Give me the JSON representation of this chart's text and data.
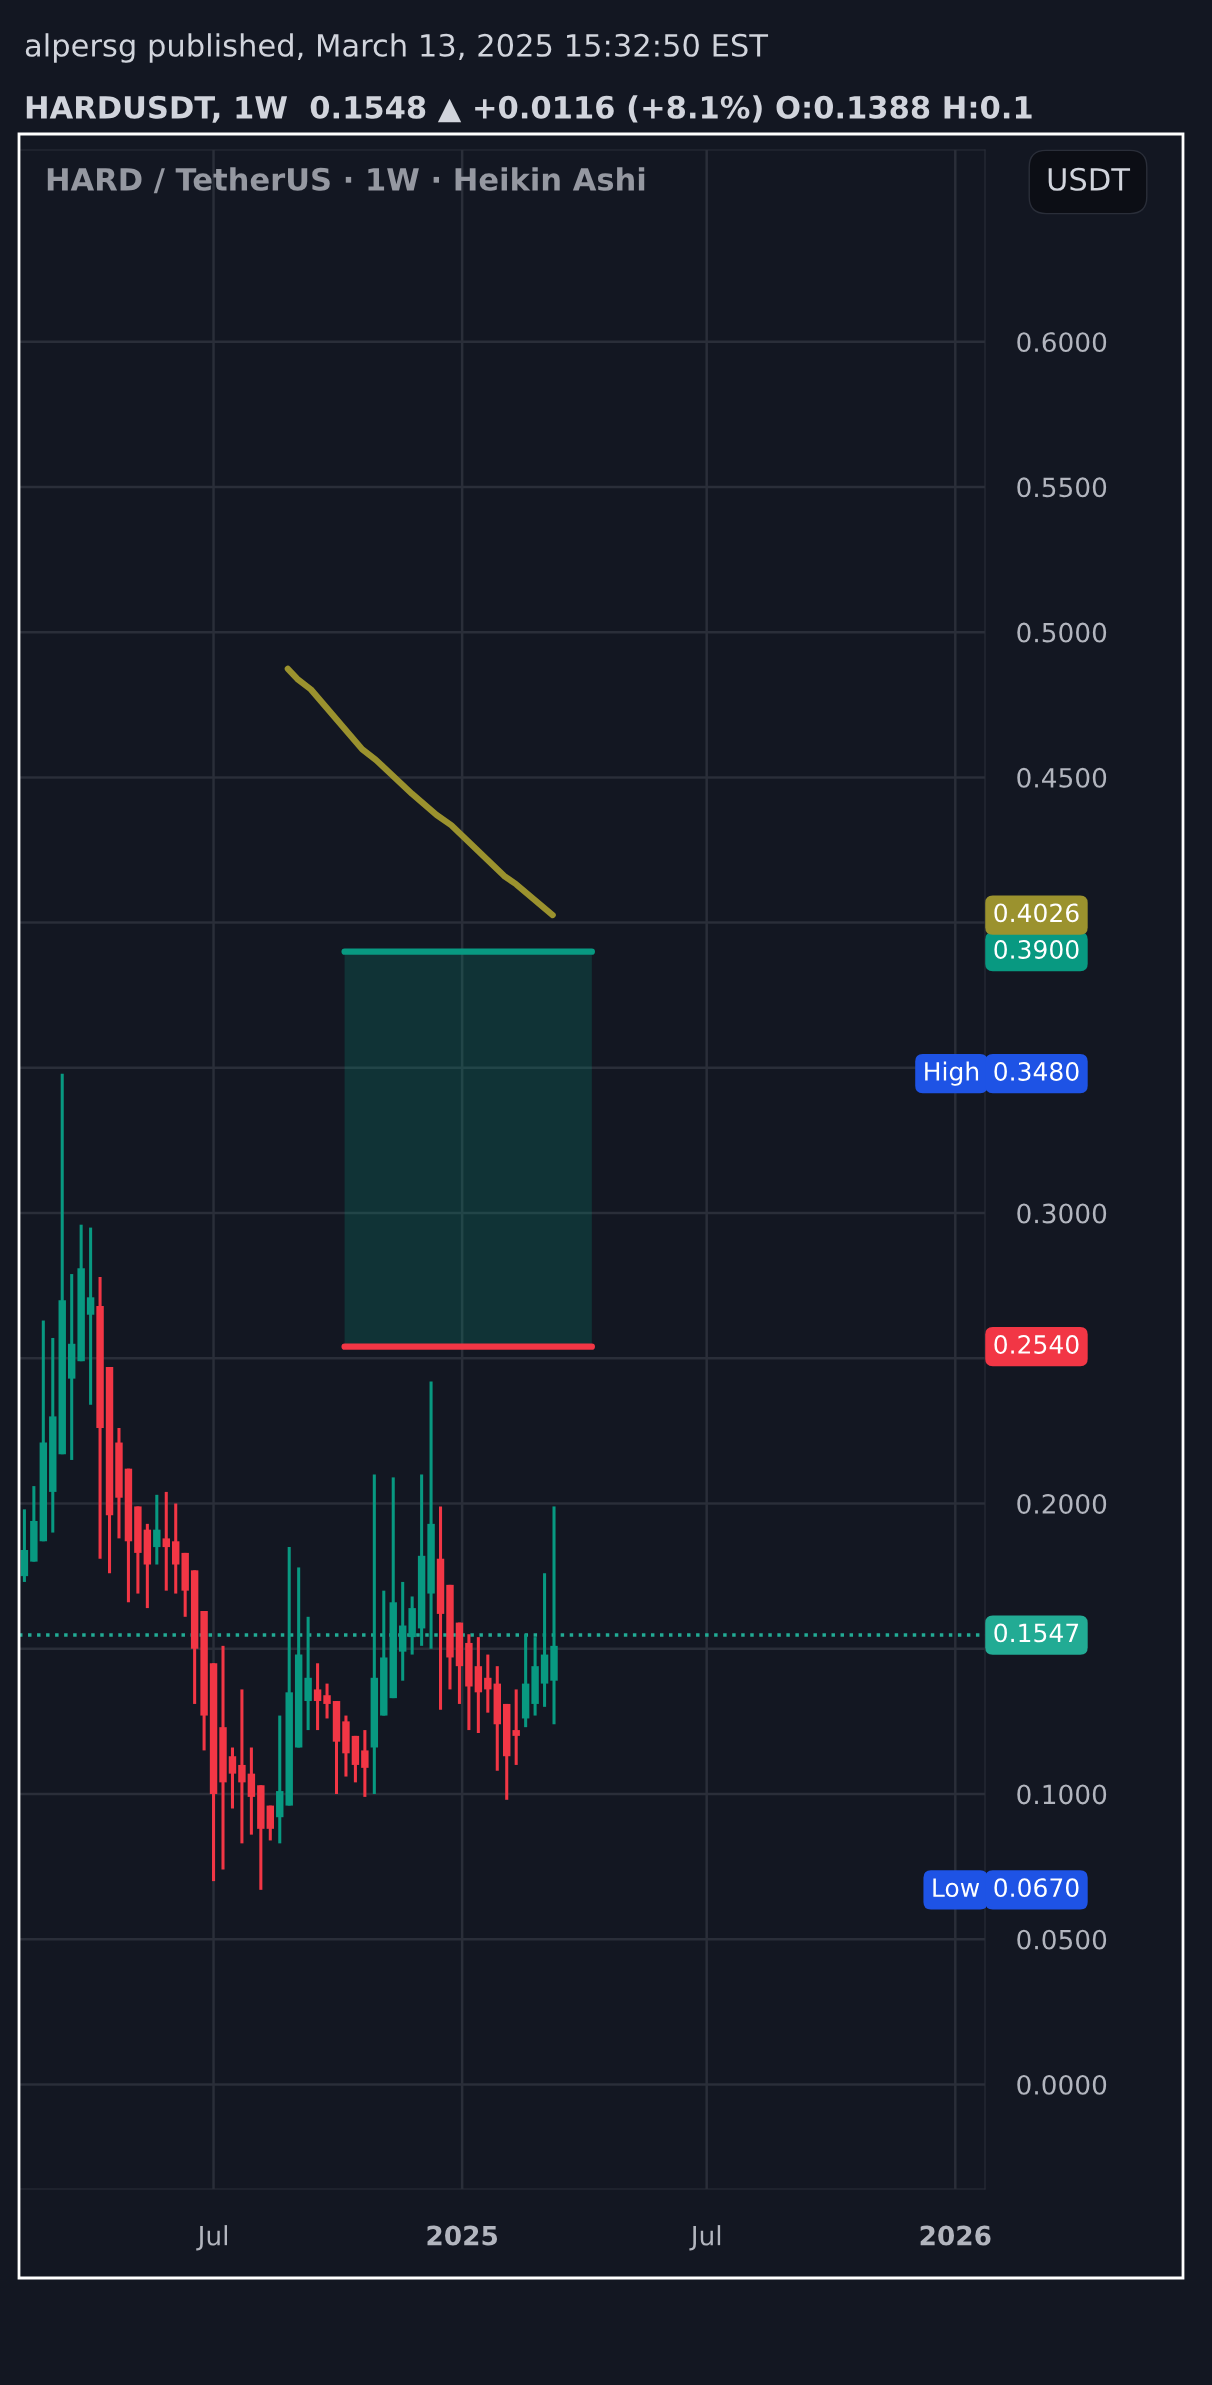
{
  "chart_data": {
    "type": "candlestick",
    "title": "HARD / TetherUS · 1W · Heikin Ashi",
    "subtitle": "HARDUSDT, 1W  0.1548 ▲ +0.0116 (+8.1%) O:0.1388 H:0.1",
    "x": [
      "2024-02-12",
      "2024-02-19",
      "2024-02-26",
      "2024-03-04",
      "2024-03-11",
      "2024-03-18",
      "2024-03-25",
      "2024-04-01",
      "2024-04-08",
      "2024-04-15",
      "2024-04-22",
      "2024-04-29",
      "2024-05-06",
      "2024-05-13",
      "2024-05-20",
      "2024-05-27",
      "2024-06-03",
      "2024-06-10",
      "2024-06-17",
      "2024-06-24",
      "2024-07-01",
      "2024-07-08",
      "2024-07-15",
      "2024-07-22",
      "2024-07-29",
      "2024-08-05",
      "2024-08-12",
      "2024-08-19",
      "2024-08-26",
      "2024-09-02",
      "2024-09-09",
      "2024-09-16",
      "2024-09-23",
      "2024-09-30",
      "2024-10-07",
      "2024-10-14",
      "2024-10-21",
      "2024-10-28",
      "2024-11-04",
      "2024-11-11",
      "2024-11-18",
      "2024-11-25",
      "2024-12-02",
      "2024-12-09",
      "2024-12-16",
      "2024-12-23",
      "2024-12-30",
      "2025-01-06",
      "2025-01-13",
      "2025-01-20",
      "2025-01-27",
      "2025-02-03",
      "2025-02-10",
      "2025-02-17",
      "2025-02-24",
      "2025-03-03",
      "2025-03-10"
    ],
    "ohlc": [
      [
        0.175,
        0.198,
        0.173,
        0.184
      ],
      [
        0.18,
        0.206,
        0.18,
        0.194
      ],
      [
        0.187,
        0.263,
        0.187,
        0.221
      ],
      [
        0.204,
        0.257,
        0.19,
        0.23
      ],
      [
        0.217,
        0.348,
        0.217,
        0.27
      ],
      [
        0.243,
        0.279,
        0.215,
        0.255
      ],
      [
        0.249,
        0.296,
        0.249,
        0.281
      ],
      [
        0.265,
        0.295,
        0.234,
        0.271
      ],
      [
        0.268,
        0.278,
        0.181,
        0.226
      ],
      [
        0.247,
        0.247,
        0.176,
        0.196
      ],
      [
        0.221,
        0.226,
        0.188,
        0.202
      ],
      [
        0.212,
        0.212,
        0.166,
        0.187
      ],
      [
        0.199,
        0.199,
        0.169,
        0.183
      ],
      [
        0.191,
        0.193,
        0.164,
        0.179
      ],
      [
        0.185,
        0.203,
        0.179,
        0.191
      ],
      [
        0.188,
        0.204,
        0.17,
        0.185
      ],
      [
        0.187,
        0.2,
        0.169,
        0.179
      ],
      [
        0.183,
        0.183,
        0.161,
        0.17
      ],
      [
        0.177,
        0.177,
        0.131,
        0.15
      ],
      [
        0.163,
        0.163,
        0.115,
        0.127
      ],
      [
        0.145,
        0.145,
        0.07,
        0.1
      ],
      [
        0.123,
        0.151,
        0.074,
        0.104
      ],
      [
        0.113,
        0.116,
        0.095,
        0.107
      ],
      [
        0.11,
        0.136,
        0.083,
        0.104
      ],
      [
        0.107,
        0.116,
        0.086,
        0.099
      ],
      [
        0.103,
        0.103,
        0.067,
        0.088
      ],
      [
        0.096,
        0.096,
        0.084,
        0.088
      ],
      [
        0.092,
        0.127,
        0.083,
        0.101
      ],
      [
        0.096,
        0.185,
        0.096,
        0.135
      ],
      [
        0.116,
        0.178,
        0.116,
        0.148
      ],
      [
        0.132,
        0.161,
        0.122,
        0.14
      ],
      [
        0.136,
        0.145,
        0.122,
        0.132
      ],
      [
        0.134,
        0.138,
        0.126,
        0.131
      ],
      [
        0.132,
        0.132,
        0.1,
        0.118
      ],
      [
        0.125,
        0.127,
        0.106,
        0.114
      ],
      [
        0.12,
        0.12,
        0.104,
        0.11
      ],
      [
        0.115,
        0.122,
        0.099,
        0.109
      ],
      [
        0.116,
        0.21,
        0.1,
        0.14
      ],
      [
        0.127,
        0.17,
        0.127,
        0.147
      ],
      [
        0.133,
        0.209,
        0.133,
        0.166
      ],
      [
        0.149,
        0.173,
        0.139,
        0.158
      ],
      [
        0.154,
        0.168,
        0.148,
        0.164
      ],
      [
        0.157,
        0.21,
        0.151,
        0.182
      ],
      [
        0.169,
        0.242,
        0.15,
        0.193
      ],
      [
        0.181,
        0.199,
        0.129,
        0.162
      ],
      [
        0.172,
        0.172,
        0.136,
        0.147
      ],
      [
        0.159,
        0.159,
        0.131,
        0.144
      ],
      [
        0.152,
        0.155,
        0.122,
        0.137
      ],
      [
        0.144,
        0.154,
        0.121,
        0.135
      ],
      [
        0.14,
        0.148,
        0.128,
        0.136
      ],
      [
        0.138,
        0.144,
        0.108,
        0.124
      ],
      [
        0.131,
        0.131,
        0.098,
        0.113
      ],
      [
        0.122,
        0.136,
        0.11,
        0.12
      ],
      [
        0.126,
        0.155,
        0.123,
        0.138
      ],
      [
        0.131,
        0.154,
        0.127,
        0.144
      ],
      [
        0.138,
        0.176,
        0.13,
        0.148
      ],
      [
        0.139,
        0.199,
        0.124,
        0.151
      ]
    ],
    "series": [
      {
        "type": "line",
        "color": "#089981",
        "x": [
          "2024-10-06",
          "2025-04-07"
        ],
        "values": [
          0.39,
          0.39
        ],
        "lower": [
          0.254,
          0.254
        ],
        "upper": [
          0.39,
          0.39
        ]
      },
      {
        "type": "line",
        "color": "#f23645",
        "x": [
          "2024-10-06",
          "2025-04-07"
        ],
        "values": [
          0.254,
          0.254
        ]
      },
      {
        "type": "line",
        "color": "#9b922e",
        "x": [
          "2024-08-25",
          "2024-09-01",
          "2024-09-11",
          "2024-10-19",
          "2024-10-29",
          "2024-11-25",
          "2024-12-13",
          "2024-12-24",
          "2025-02-01",
          "2025-02-10",
          "2025-03-09"
        ],
        "values": [
          0.4874,
          0.4839,
          0.4803,
          0.4597,
          0.4561,
          0.4443,
          0.4371,
          0.4335,
          0.4161,
          0.4132,
          0.4026
        ]
      }
    ],
    "xlim": [
      "2024-02-08",
      "2026-01-23"
    ],
    "ylim": [
      -0.036,
      0.666
    ],
    "xticks": [
      {
        "value": "2024-07-01",
        "label": "Jul"
      },
      {
        "value": "2025-01-01",
        "label": "2025"
      },
      {
        "value": "2025-07-01",
        "label": "Jul"
      },
      {
        "value": "2026-01-01",
        "label": "2026"
      }
    ],
    "yticks": [
      {
        "value": 0,
        "label": "0.0000"
      },
      {
        "value": 0.05,
        "label": "0.0500"
      },
      {
        "value": 0.1,
        "label": "0.1000"
      },
      {
        "value": 0.15,
        "label": null
      },
      {
        "value": 0.2,
        "label": "0.2000"
      },
      {
        "value": 0.25,
        "label": null
      },
      {
        "value": 0.3,
        "label": "0.3000"
      },
      {
        "value": 0.35,
        "label": null
      },
      {
        "value": 0.4,
        "label": null
      },
      {
        "value": 0.45,
        "label": "0.4500"
      },
      {
        "value": 0.5,
        "label": "0.5000"
      },
      {
        "value": 0.55,
        "label": "0.5500"
      },
      {
        "value": 0.6,
        "label": "0.6000"
      }
    ],
    "grid": true,
    "ref_lines": [
      {
        "axis": "y",
        "value": 0.1547,
        "label": "0.1547",
        "color": "#22ab94",
        "line_style": "dotted"
      }
    ],
    "annotations": [
      "alpersg published, March 13, 2025 15:32:50 EST",
      "USDT",
      "0.3900",
      "0.2540",
      "0.4026",
      "High",
      "0.3480",
      "Low",
      "0.0670"
    ]
  }
}
